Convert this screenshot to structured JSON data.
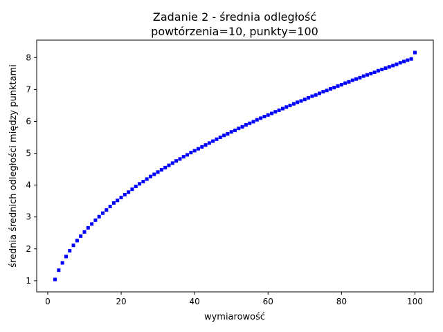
{
  "chart_data": {
    "type": "scatter",
    "title_line1": "Zadanie 2 - średnia odległość",
    "title_line2": "powtórzenia=10, punkty=100",
    "xlabel": "wymiarowość",
    "ylabel": "średnia średnich odległości między punktami",
    "xlim": [
      -3,
      105
    ],
    "ylim": [
      0.65,
      8.55
    ],
    "xticks": [
      0,
      20,
      40,
      60,
      80,
      100
    ],
    "yticks": [
      1,
      2,
      3,
      4,
      5,
      6,
      7,
      8
    ],
    "grid": false,
    "marker_color": "#0000ff",
    "series": [
      {
        "x": [
          2,
          3,
          4,
          5,
          6,
          7,
          8,
          9,
          10,
          11,
          12,
          13,
          14,
          15,
          16,
          17,
          18,
          19,
          20,
          21,
          22,
          23,
          24,
          25,
          26,
          27,
          28,
          29,
          30,
          31,
          32,
          33,
          34,
          35,
          36,
          37,
          38,
          39,
          40,
          41,
          42,
          43,
          44,
          45,
          46,
          47,
          48,
          49,
          50,
          51,
          52,
          53,
          54,
          55,
          56,
          57,
          58,
          59,
          60,
          61,
          62,
          63,
          64,
          65,
          66,
          67,
          68,
          69,
          70,
          71,
          72,
          73,
          74,
          75,
          76,
          77,
          78,
          79,
          80,
          81,
          82,
          83,
          84,
          85,
          86,
          87,
          88,
          89,
          90,
          91,
          92,
          93,
          94,
          95,
          96,
          97,
          98,
          99,
          100
        ],
        "y": [
          1.04,
          1.33,
          1.56,
          1.76,
          1.94,
          2.11,
          2.26,
          2.4,
          2.53,
          2.66,
          2.78,
          2.9,
          3.01,
          3.12,
          3.22,
          3.33,
          3.44,
          3.52,
          3.61,
          3.7,
          3.78,
          3.87,
          3.96,
          4.04,
          4.11,
          4.19,
          4.27,
          4.34,
          4.41,
          4.48,
          4.55,
          4.62,
          4.69,
          4.76,
          4.82,
          4.89,
          4.95,
          5.02,
          5.08,
          5.14,
          5.2,
          5.26,
          5.32,
          5.38,
          5.44,
          5.5,
          5.56,
          5.61,
          5.67,
          5.72,
          5.78,
          5.83,
          5.89,
          5.94,
          5.99,
          6.05,
          6.1,
          6.15,
          6.2,
          6.25,
          6.3,
          6.35,
          6.4,
          6.45,
          6.5,
          6.55,
          6.6,
          6.64,
          6.69,
          6.74,
          6.79,
          6.83,
          6.88,
          6.93,
          6.97,
          7.02,
          7.06,
          7.11,
          7.15,
          7.2,
          7.24,
          7.29,
          7.33,
          7.37,
          7.42,
          7.46,
          7.5,
          7.54,
          7.59,
          7.63,
          7.67,
          7.71,
          7.75,
          7.79,
          7.84,
          7.88,
          7.92,
          7.96,
          8.16
        ]
      }
    ]
  }
}
